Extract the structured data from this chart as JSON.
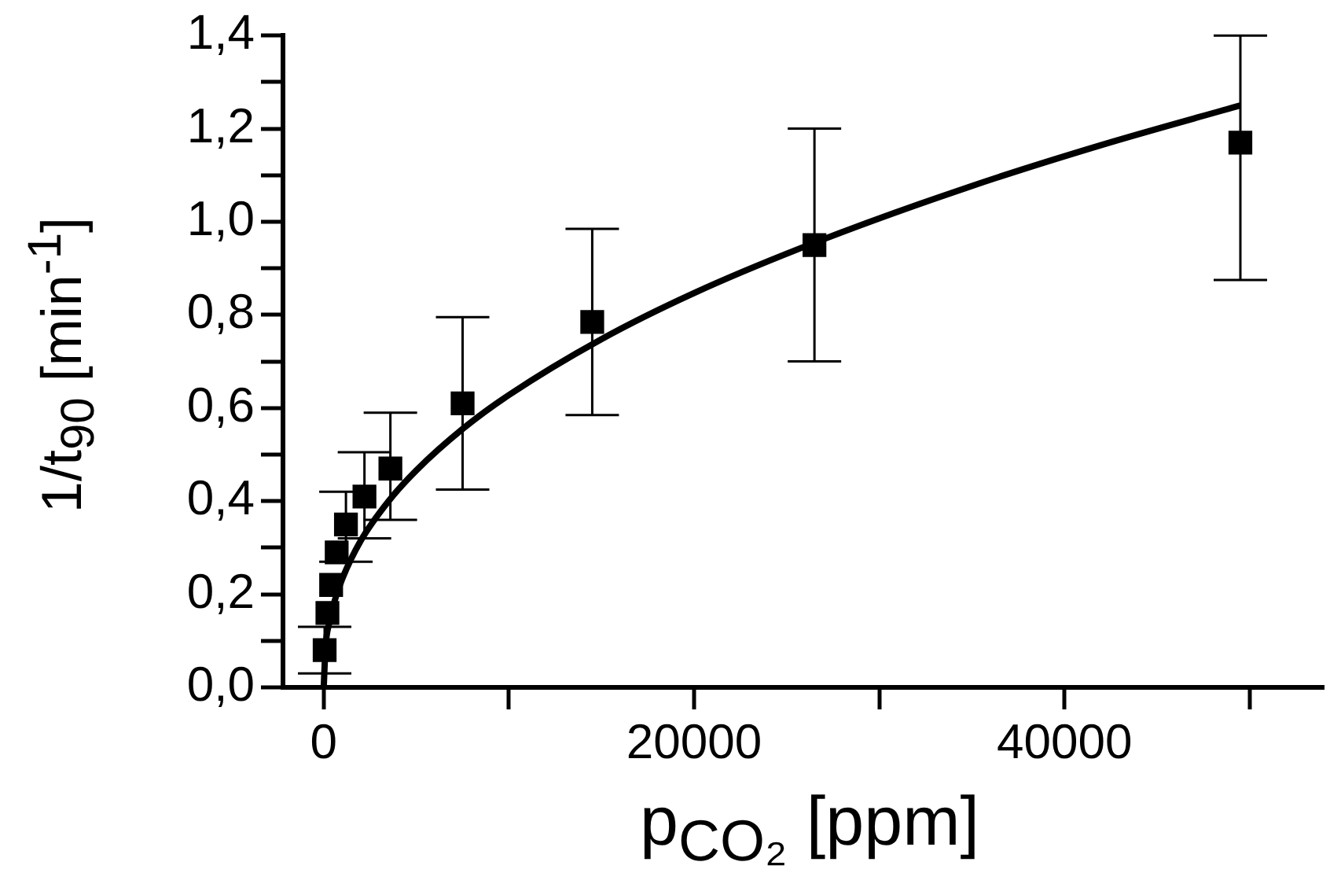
{
  "chart_data": {
    "type": "scatter",
    "xlabel": "p$_{CO₂}$ [ppm]",
    "ylabel": "1/t$_{90}$ [min$^{-1}$]",
    "xlim": [
      -2200,
      54000
    ],
    "ylim": [
      0,
      1.4
    ],
    "xticks": [
      0,
      {
        "value": 10000,
        "label": null
      },
      20000,
      {
        "value": 30000,
        "label": null
      },
      40000,
      {
        "value": 50000,
        "label": null
      }
    ],
    "yticks": [
      {
        "value": 0,
        "label": "0,0"
      },
      {
        "value": 0.1,
        "label": null
      },
      {
        "value": 0.2,
        "label": "0,2"
      },
      {
        "value": 0.3,
        "label": null
      },
      {
        "value": 0.4,
        "label": "0,4"
      },
      {
        "value": 0.5,
        "label": null
      },
      {
        "value": 0.6,
        "label": "0,6"
      },
      {
        "value": 0.7,
        "label": null
      },
      {
        "value": 0.8,
        "label": "0,8"
      },
      {
        "value": 0.9,
        "label": null
      },
      {
        "value": 1.0,
        "label": "1,0"
      },
      {
        "value": 1.1,
        "label": null
      },
      {
        "value": 1.2,
        "label": "1,2"
      },
      {
        "value": 1.3,
        "label": null
      },
      {
        "value": 1.4,
        "label": "1,4"
      }
    ],
    "marker": "square",
    "legend": false,
    "series": [
      {
        "color": "#000000",
        "x": [
          50,
          200,
          400,
          700,
          1200,
          2200,
          3600,
          7500,
          14500,
          26500,
          49500
        ],
        "values": [
          0.08,
          0.16,
          0.22,
          0.29,
          0.35,
          0.41,
          0.47,
          0.61,
          0.785,
          0.95,
          1.17
        ],
        "errors": [
          [
            0.03,
            0.13
          ],
          null,
          null,
          null,
          [
            0.27,
            0.42
          ],
          [
            0.32,
            0.505
          ],
          [
            0.36,
            0.59
          ],
          [
            0.425,
            0.795
          ],
          [
            0.585,
            0.985
          ],
          [
            0.7,
            1.2
          ],
          [
            0.875,
            1.4
          ]
        ]
      },
      {
        "type": "line",
        "color": "#000000",
        "marker": "none",
        "x": [
          0,
          100,
          300,
          600,
          1000,
          2000,
          3500,
          5000,
          7500,
          10000,
          15000,
          20000,
          26500,
          35000,
          42000,
          49500
        ],
        "values": [
          0,
          0.087,
          0.139,
          0.187,
          0.233,
          0.315,
          0.4,
          0.466,
          0.555,
          0.628,
          0.748,
          0.847,
          0.955,
          1.077,
          1.165,
          1.25
        ]
      }
    ]
  }
}
